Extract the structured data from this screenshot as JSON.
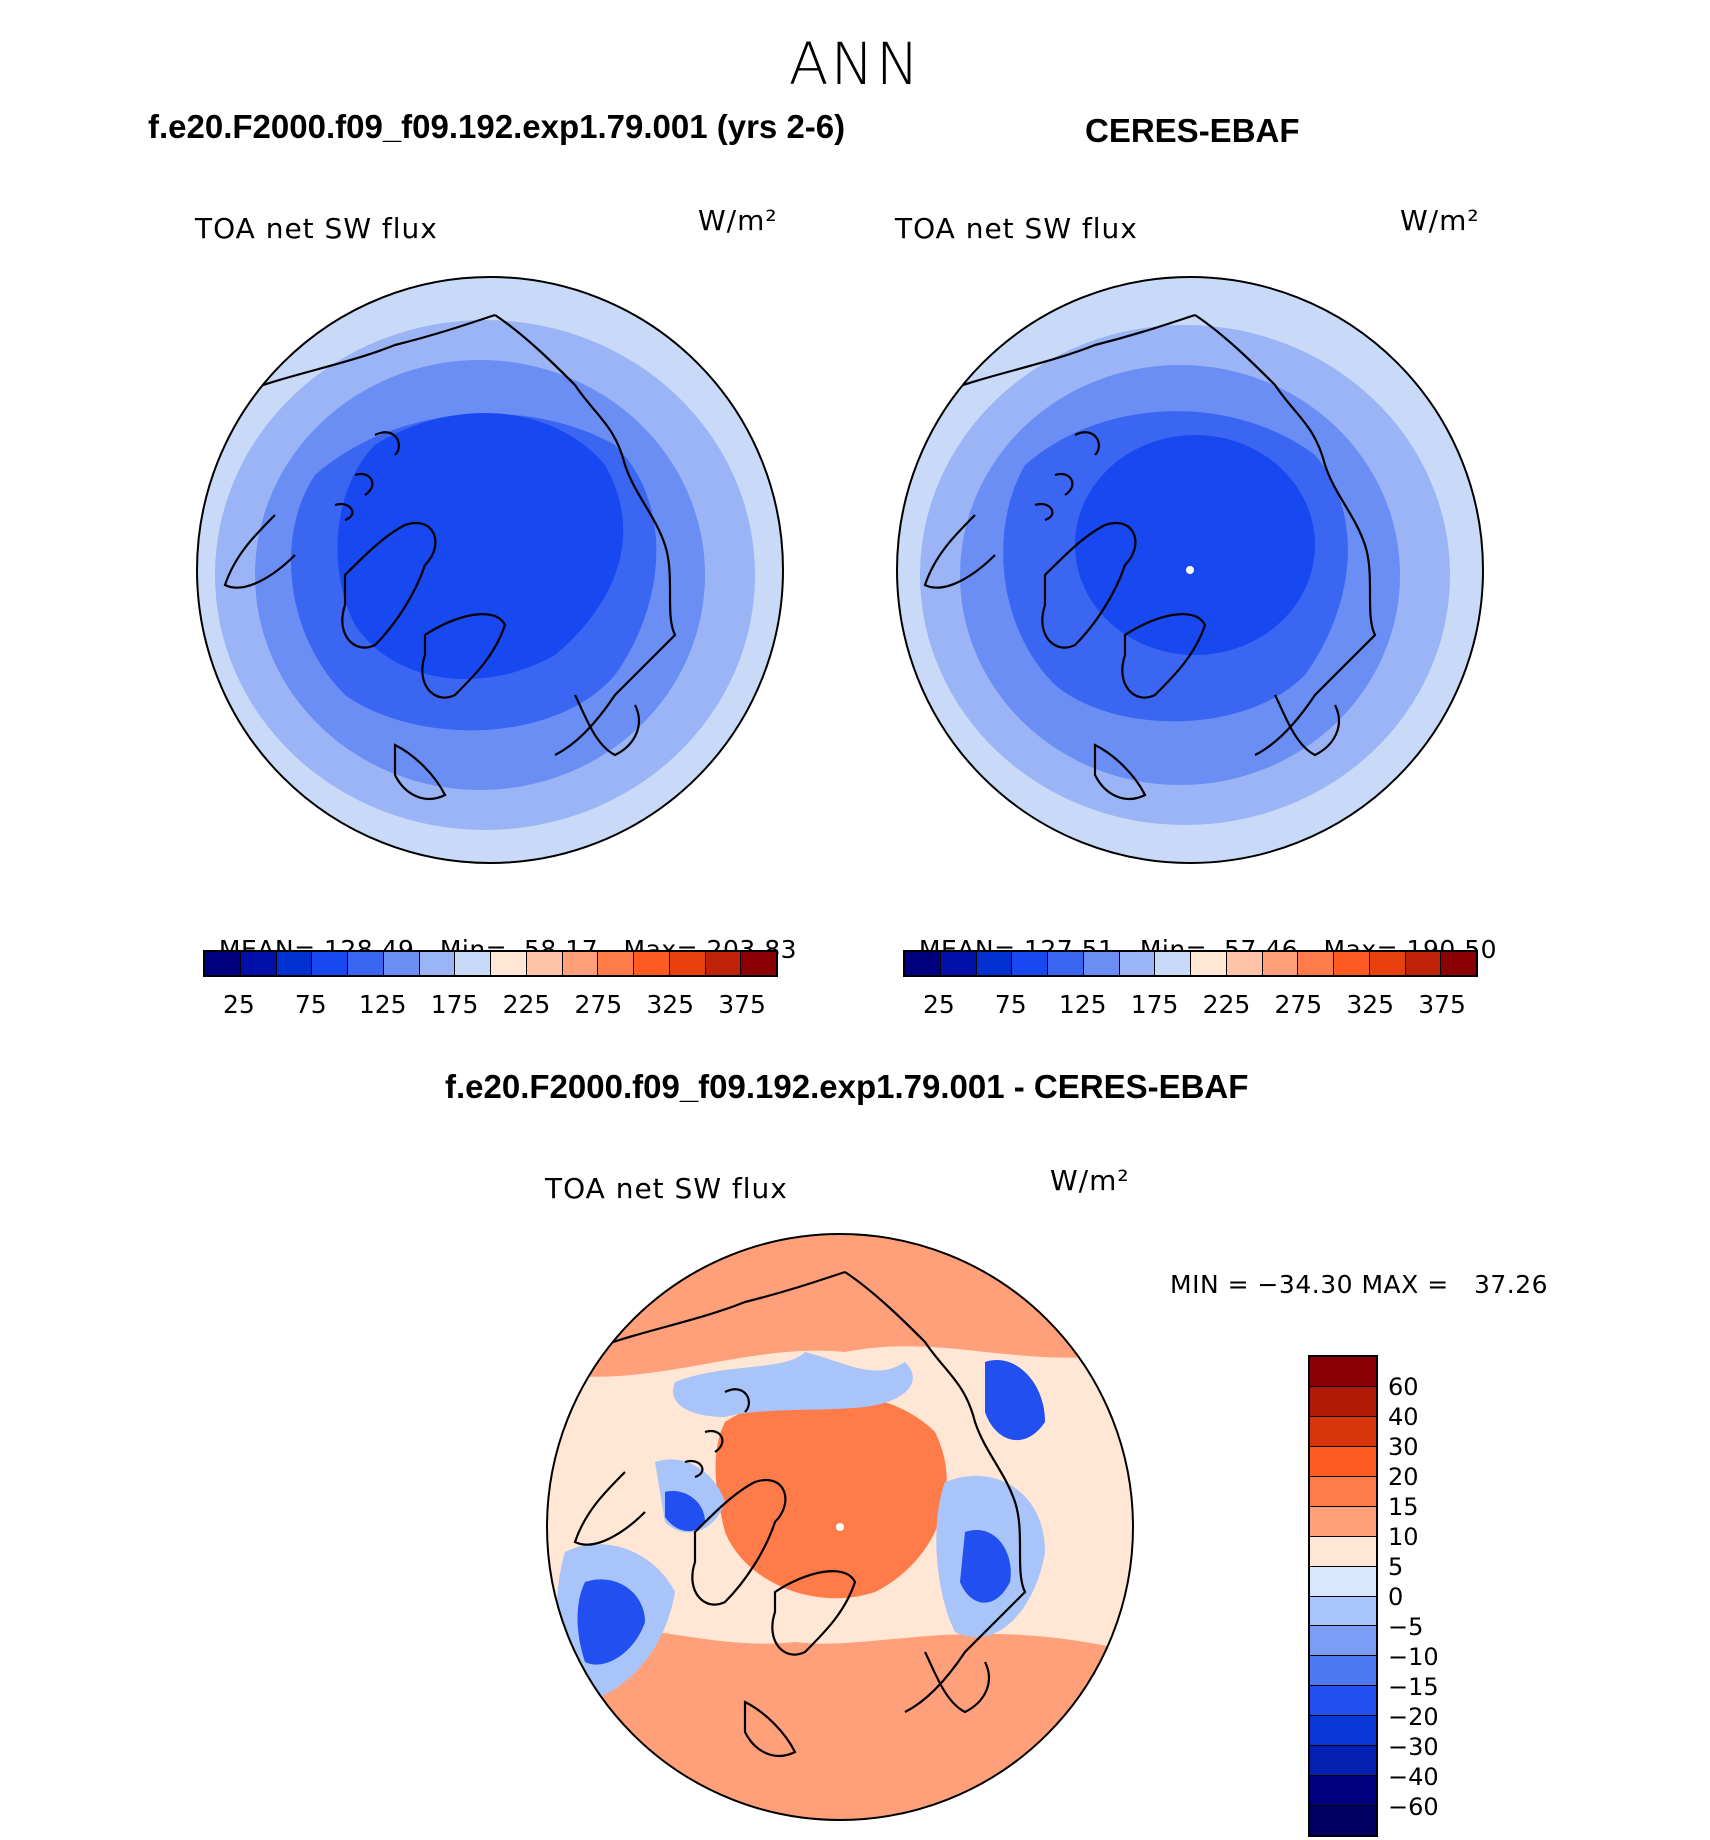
{
  "page_title": "ANN",
  "left_panel": {
    "title": "f.e20.F2000.f09_f09.192.exp1.79.001 (yrs 2-6)",
    "variable": "TOA net SW flux",
    "units": "W/m²",
    "stats": {
      "mean_label": "MEAN=",
      "mean": "128.49",
      "min_label": "Min=",
      "min": "58.17",
      "max_label": "Max=",
      "max": "203.83"
    }
  },
  "right_panel": {
    "title": "CERES-EBAF",
    "variable": "TOA net SW flux",
    "units": "W/m²",
    "stats": {
      "mean_label": "MEAN=",
      "mean": "127.51",
      "min_label": "Min=",
      "min": "57.46",
      "max_label": "Max=",
      "max": "190.50"
    }
  },
  "diff_panel": {
    "title": "f.e20.F2000.f09_f09.192.exp1.79.001 - CERES-EBAF",
    "variable": "TOA net SW flux",
    "units": "W/m²",
    "minmax": "MIN = −34.30 MAX =   37.26"
  },
  "abs_colorbar": {
    "colors": [
      "#00007f",
      "#0010a8",
      "#0030d0",
      "#1848f0",
      "#3a66f2",
      "#6a8ef4",
      "#9ab4f6",
      "#c8daf8",
      "#ffe6d5",
      "#ffc4a8",
      "#ffa07a",
      "#ff7c4a",
      "#ff5a22",
      "#e8400c",
      "#c02408",
      "#8a0004"
    ],
    "ticks": [
      "25",
      "75",
      "125",
      "175",
      "225",
      "275",
      "325",
      "375"
    ]
  },
  "diff_colorbar": {
    "colors": [
      "#8a0004",
      "#b01a06",
      "#d8360a",
      "#ff5a22",
      "#ff7c4a",
      "#ffa07a",
      "#ffe6d5",
      "#d8e8fc",
      "#a8c4f8",
      "#7a9ef6",
      "#4c78f2",
      "#2250f0",
      "#0a36d8",
      "#0420b0",
      "#00007f"
    ],
    "ticks": [
      "60",
      "40",
      "30",
      "20",
      "15",
      "10",
      "5",
      "0",
      "−5",
      "−10",
      "−15",
      "−20",
      "−30",
      "−40",
      "−60"
    ]
  },
  "map_colors": {
    "abs_outer": "#c8daf8",
    "abs_mid1": "#9ab4f6",
    "abs_mid2": "#6a8ef4",
    "abs_mid3": "#3a66f2",
    "abs_inner": "#1848f0",
    "diff_base": "#ffe6d5",
    "diff_warm": "#ffa07a",
    "diff_hot": "#ff7c4a",
    "diff_cool": "#a8c4f8",
    "diff_cold": "#2250f0"
  }
}
